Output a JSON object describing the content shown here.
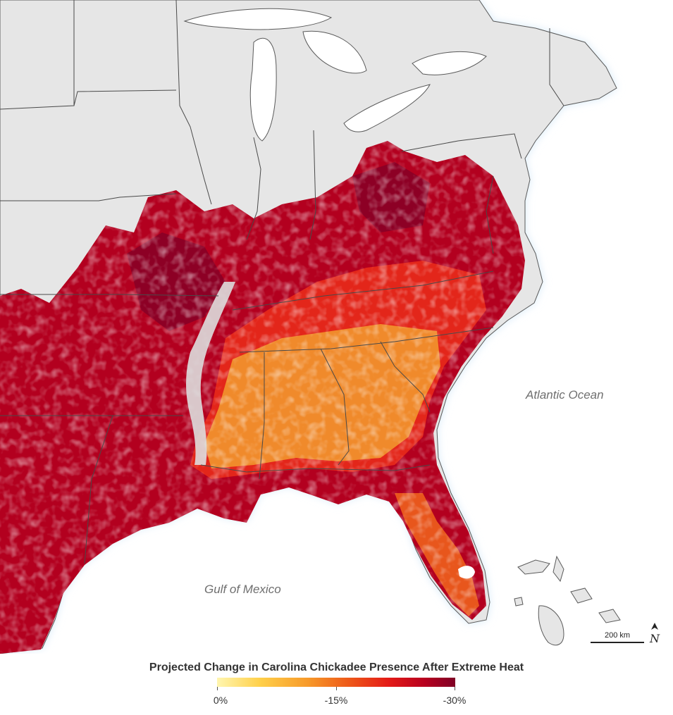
{
  "map": {
    "labels": {
      "atlantic": "Atlantic Ocean",
      "gulf": "Gulf of Mexico"
    },
    "scale_label": "200 km",
    "north_symbol": "N"
  },
  "legend": {
    "title": "Projected Change in Carolina Chickadee Presence After Extreme Heat",
    "ticks": [
      "0%",
      "-15%",
      "-30%"
    ],
    "colors": [
      "#fff6b0",
      "#ffd04a",
      "#f79a2a",
      "#ee5a19",
      "#e41b17",
      "#b8001f",
      "#7f0025"
    ]
  },
  "colors": {
    "ocean": "#ffffff",
    "land": "#e6e6e6",
    "coast_glow": "#d6e9f8",
    "state_lines": "#4a4a4a"
  }
}
